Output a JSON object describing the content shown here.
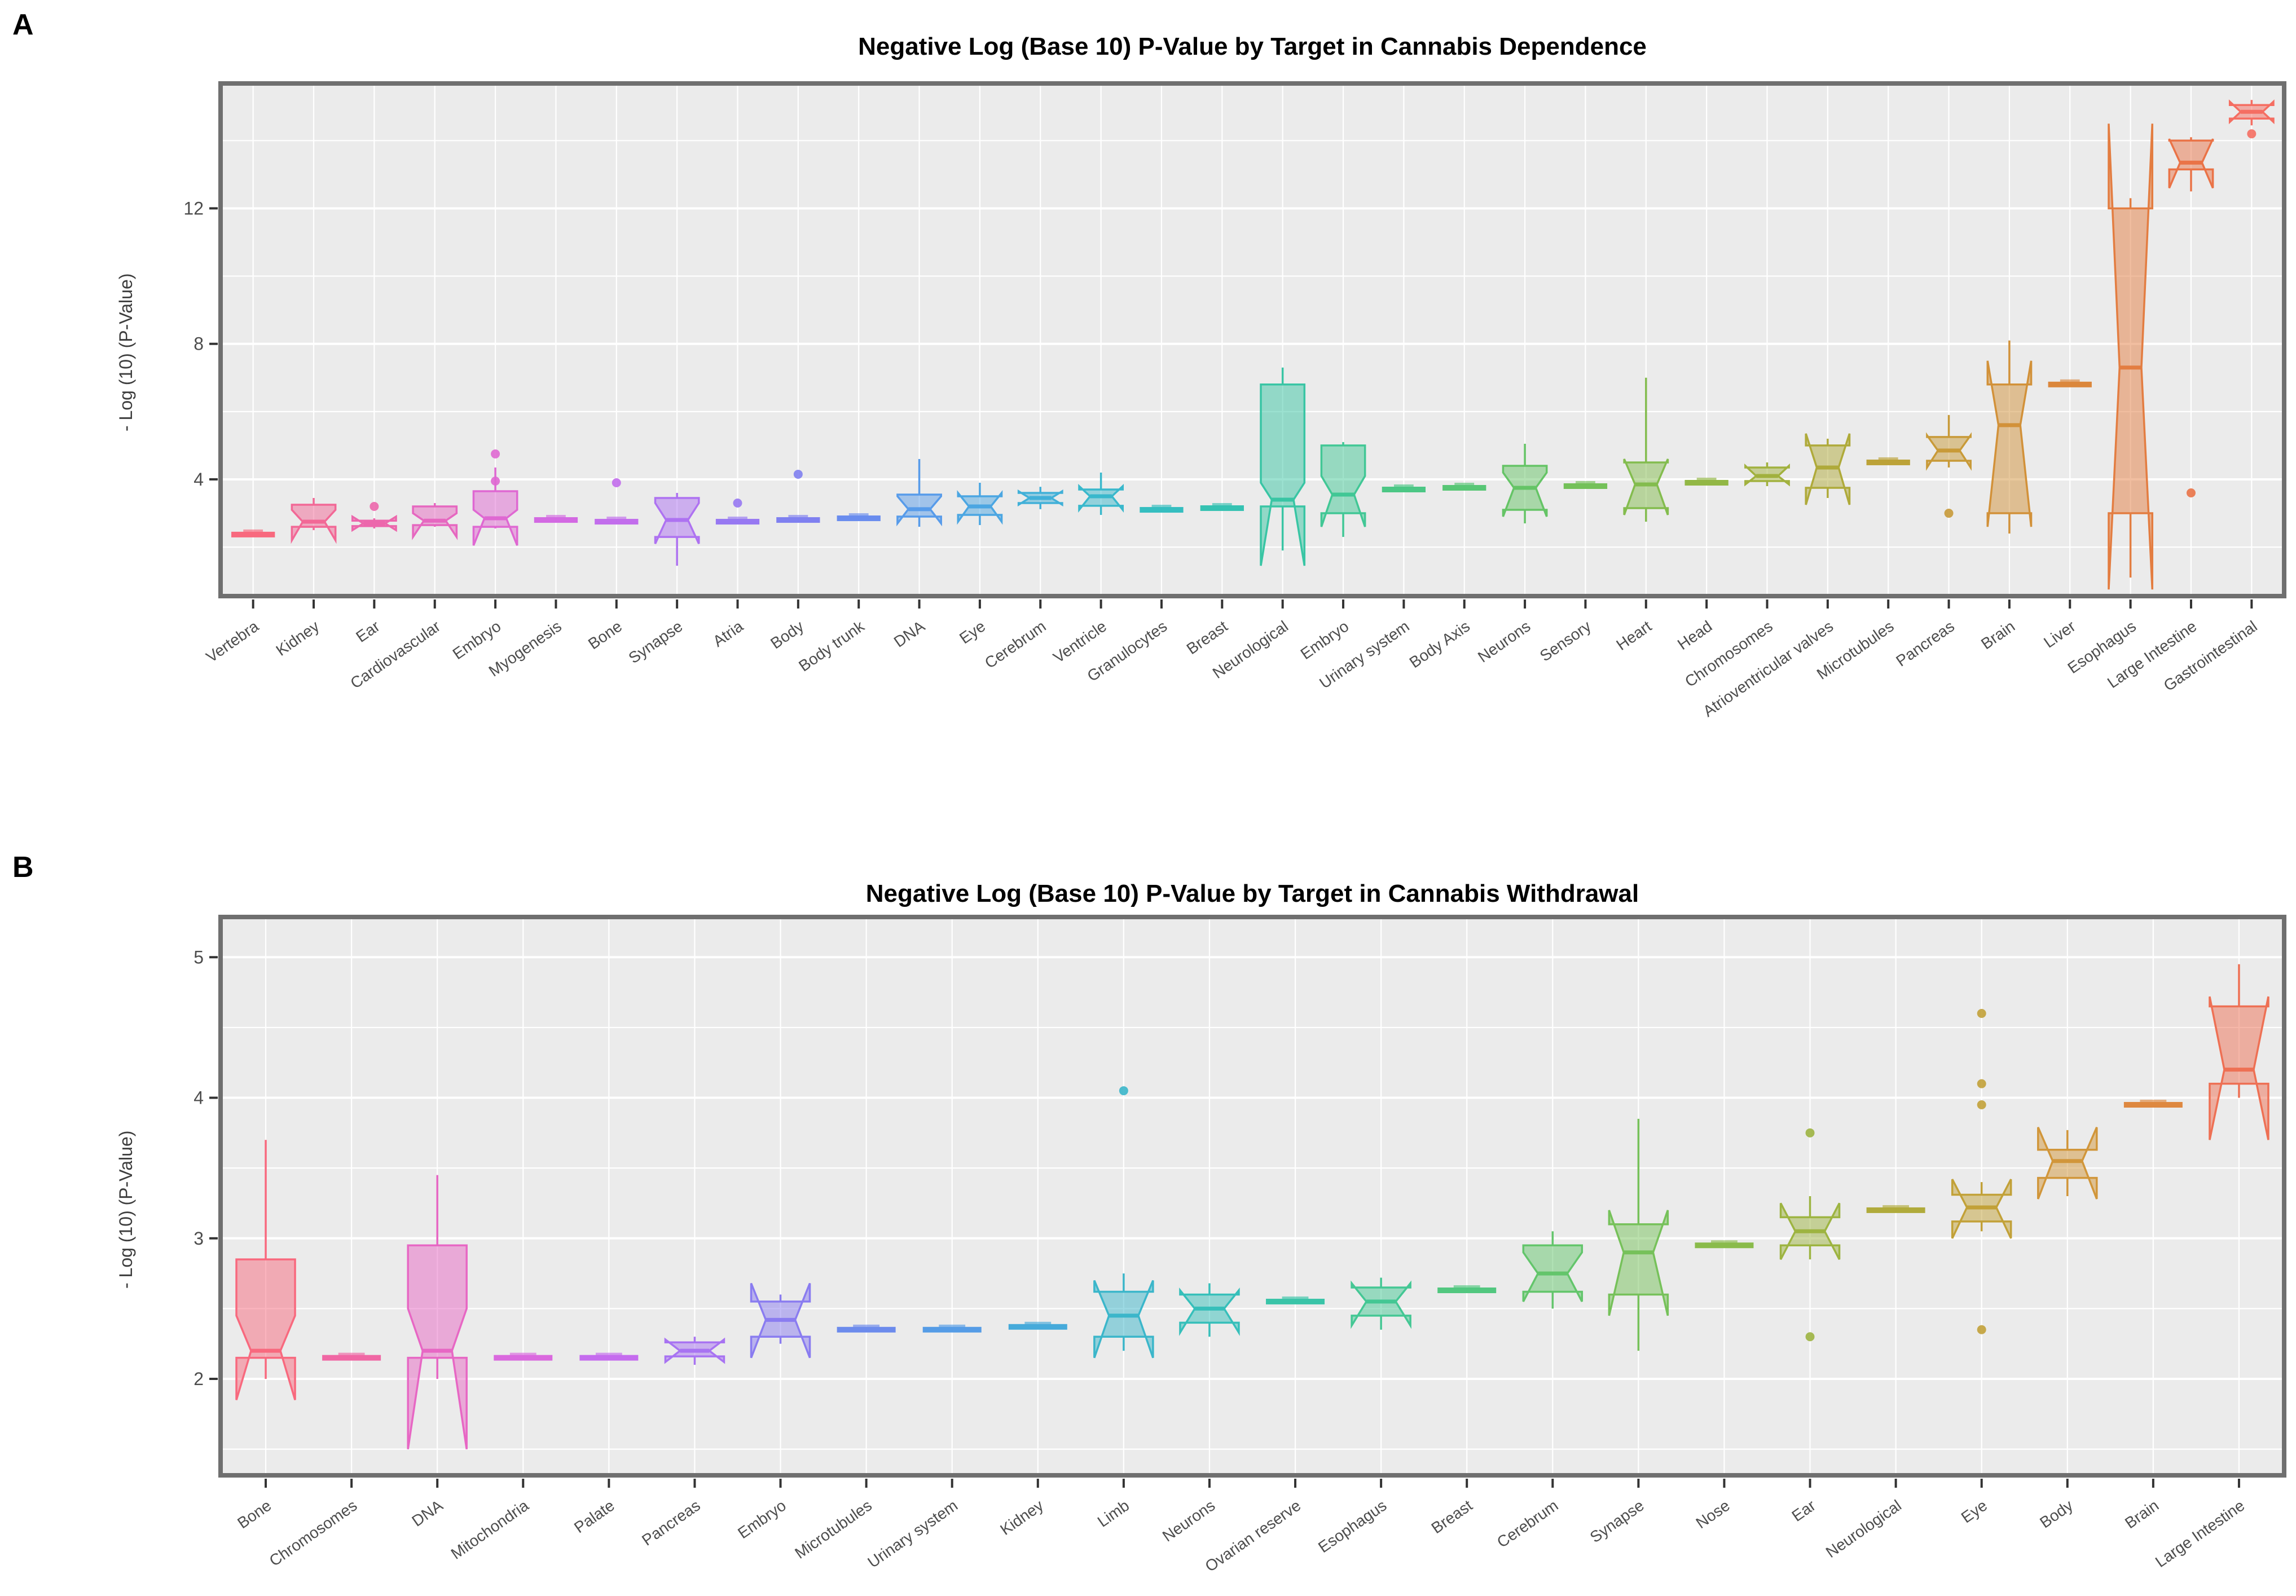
{
  "page": {
    "background": "#ffffff",
    "plot_background": "#ebebeb",
    "grid_color": "#ffffff",
    "border_color": "#6f6f6f",
    "text_color": "#3d3d3d"
  },
  "chart_data": [
    {
      "panel_label": "A",
      "type": "boxplot",
      "title": "Negative Log (Base 10) P-Value by Target in Cannabis Dependence",
      "ylabel": "- Log (10) (P-Value)",
      "xlabel": "",
      "ylim": [
        0.62,
        15.62
      ],
      "yticks": [
        4,
        8,
        12
      ],
      "yminor": [
        2,
        6,
        10,
        14
      ],
      "grid": true,
      "legend": "none",
      "boxes": [
        {
          "label": "Vertebra",
          "color": "#F8697E",
          "flat": 2.37
        },
        {
          "label": "Kidney",
          "color": "#F26896",
          "lo": 2.5,
          "q1": 2.6,
          "m": 2.75,
          "q3": 3.25,
          "hi": 3.45,
          "nl": 2.2,
          "nh": 3.1
        },
        {
          "label": "Ear",
          "color": "#EC67AC",
          "lo": 2.55,
          "q1": 2.62,
          "m": 2.7,
          "q3": 2.78,
          "hi": 2.85,
          "nl": 2.5,
          "nh": 2.9,
          "outliers": [
            3.2
          ]
        },
        {
          "label": "Cardiovascular",
          "color": "#E667C0",
          "lo": 2.6,
          "q1": 2.65,
          "m": 2.78,
          "q3": 3.2,
          "hi": 3.3,
          "nl": 2.3,
          "nh": 3.0
        },
        {
          "label": "Embryo",
          "color": "#DF68D2",
          "lo": 2.55,
          "q1": 2.6,
          "m": 2.85,
          "q3": 3.65,
          "hi": 4.35,
          "nl": 2.05,
          "nh": 3.1,
          "outliers": [
            4.75,
            3.95
          ]
        },
        {
          "label": "Myogenesis",
          "color": "#D369E2",
          "flat": 2.8
        },
        {
          "label": "Bone",
          "color": "#C26DEC",
          "flat": 2.75,
          "outliers": [
            3.9
          ]
        },
        {
          "label": "Synapse",
          "color": "#AE72F1",
          "lo": 1.45,
          "q1": 2.3,
          "m": 2.8,
          "q3": 3.45,
          "hi": 3.6,
          "nl": 2.1,
          "nh": 3.3
        },
        {
          "label": "Atria",
          "color": "#9778F2",
          "flat": 2.75,
          "outliers": [
            3.3
          ]
        },
        {
          "label": "Body",
          "color": "#7F80F0",
          "flat": 2.8,
          "outliers": [
            4.15
          ]
        },
        {
          "label": "Body trunk",
          "color": "#698CEE",
          "flat": 2.85
        },
        {
          "label": "DNA",
          "color": "#579BEA",
          "lo": 2.6,
          "q1": 2.9,
          "m": 3.12,
          "q3": 3.55,
          "hi": 4.6,
          "nl": 2.7,
          "nh": 3.5
        },
        {
          "label": "Eye",
          "color": "#4BA6E2",
          "lo": 2.65,
          "q1": 2.95,
          "m": 3.2,
          "q3": 3.5,
          "hi": 3.9,
          "nl": 2.75,
          "nh": 3.6
        },
        {
          "label": "Cerebrum",
          "color": "#41B0D8",
          "lo": 3.12,
          "q1": 3.3,
          "m": 3.45,
          "q3": 3.6,
          "hi": 3.78,
          "nl": 3.25,
          "nh": 3.65
        },
        {
          "label": "Ventricle",
          "color": "#39B8CC",
          "lo": 2.95,
          "q1": 3.22,
          "m": 3.5,
          "q3": 3.7,
          "hi": 4.2,
          "nl": 3.1,
          "nh": 3.8
        },
        {
          "label": "Granulocytes",
          "color": "#35BEC0",
          "flat": 3.1
        },
        {
          "label": "Breast",
          "color": "#35C2B2",
          "flat": 3.15
        },
        {
          "label": "Neurological",
          "color": "#39C5A4",
          "lo": 1.9,
          "q1": 3.2,
          "m": 3.4,
          "q3": 6.8,
          "hi": 7.3,
          "nl": 1.45,
          "nh": 3.9
        },
        {
          "label": "Embryo",
          "color": "#41C795",
          "lo": 2.3,
          "q1": 3.0,
          "m": 3.55,
          "q3": 5.0,
          "hi": 5.1,
          "nl": 2.6,
          "nh": 4.1
        },
        {
          "label": "Urinary system",
          "color": "#4CC785",
          "flat": 3.7
        },
        {
          "label": "Body Axis",
          "color": "#58C675",
          "flat": 3.75
        },
        {
          "label": "Neurons",
          "color": "#65C466",
          "lo": 2.7,
          "q1": 3.1,
          "m": 3.75,
          "q3": 4.4,
          "hi": 5.05,
          "nl": 2.9,
          "nh": 4.2
        },
        {
          "label": "Sensory",
          "color": "#74C159",
          "flat": 3.8
        },
        {
          "label": "Heart",
          "color": "#83BC4E",
          "lo": 2.75,
          "q1": 3.15,
          "m": 3.85,
          "q3": 4.5,
          "hi": 7.0,
          "nl": 2.95,
          "nh": 4.6
        },
        {
          "label": "Head",
          "color": "#92B745",
          "flat": 3.9
        },
        {
          "label": "Chromosomes",
          "color": "#A1B13E",
          "lo": 3.8,
          "q1": 3.95,
          "m": 4.1,
          "q3": 4.35,
          "hi": 4.5,
          "nl": 3.85,
          "nh": 4.4
        },
        {
          "label": "Atrioventricular valves",
          "color": "#AFAA3A",
          "lo": 3.45,
          "q1": 3.75,
          "m": 4.35,
          "q3": 5.0,
          "hi": 5.2,
          "nl": 3.25,
          "nh": 5.35
        },
        {
          "label": "Microtubules",
          "color": "#BCA238",
          "flat": 4.5
        },
        {
          "label": "Pancreas",
          "color": "#C89A38",
          "lo": 4.35,
          "q1": 4.55,
          "m": 4.85,
          "q3": 5.25,
          "hi": 5.9,
          "nl": 4.35,
          "nh": 5.3,
          "outliers": [
            3.0
          ]
        },
        {
          "label": "Brain",
          "color": "#D29139",
          "lo": 2.4,
          "q1": 3.0,
          "m": 5.6,
          "q3": 6.8,
          "hi": 8.1,
          "nl": 2.6,
          "nh": 7.5
        },
        {
          "label": "Liver",
          "color": "#DB873C",
          "flat": 6.8
        },
        {
          "label": "Esophagus",
          "color": "#E37D41",
          "lo": 1.1,
          "q1": 3.0,
          "m": 7.3,
          "q3": 12.0,
          "hi": 12.3,
          "nl": 0.75,
          "nh": 14.5
        },
        {
          "label": "Large Intestine",
          "color": "#EA7347",
          "lo": 12.5,
          "q1": 13.15,
          "m": 13.35,
          "q3": 14.0,
          "hi": 14.1,
          "nl": 12.6,
          "nh": 14.05,
          "outliers": [
            3.6
          ]
        },
        {
          "label": "Gastrointestinal",
          "color": "#F56E62",
          "lo": 14.45,
          "q1": 14.65,
          "m": 14.85,
          "q3": 15.05,
          "hi": 15.2,
          "nl": 14.55,
          "nh": 15.15,
          "outliers": [
            14.2
          ]
        }
      ]
    },
    {
      "panel_label": "B",
      "type": "boxplot",
      "title": "Negative Log (Base 10) P-Value by Target in Cannabis Withdrawal",
      "ylabel": "- Log (10) (P-Value)",
      "xlabel": "",
      "ylim": [
        1.33,
        5.27
      ],
      "yticks": [
        2,
        3,
        4,
        5
      ],
      "yminor": [
        1.5,
        2.5,
        3.5,
        4.5
      ],
      "grid": true,
      "legend": "none",
      "boxes": [
        {
          "label": "Bone",
          "color": "#F8697E",
          "lo": 2.0,
          "q1": 2.15,
          "m": 2.2,
          "q3": 2.85,
          "hi": 3.7,
          "nl": 1.85,
          "nh": 2.45
        },
        {
          "label": "Chromosomes",
          "color": "#F067A4",
          "flat": 2.15
        },
        {
          "label": "DNA",
          "color": "#E767C4",
          "lo": 2.0,
          "q1": 2.15,
          "m": 2.2,
          "q3": 2.95,
          "hi": 3.45,
          "nl": 1.5,
          "nh": 2.5
        },
        {
          "label": "Mitochondria",
          "color": "#DA69DE",
          "flat": 2.15
        },
        {
          "label": "Palate",
          "color": "#C56CEE",
          "flat": 2.15
        },
        {
          "label": "Pancreas",
          "color": "#A873F2",
          "lo": 2.1,
          "q1": 2.16,
          "m": 2.2,
          "q3": 2.26,
          "hi": 2.3,
          "nl": 2.12,
          "nh": 2.28
        },
        {
          "label": "Embryo",
          "color": "#8A7CF0",
          "lo": 2.25,
          "q1": 2.3,
          "m": 2.42,
          "q3": 2.55,
          "hi": 2.6,
          "nl": 2.15,
          "nh": 2.68
        },
        {
          "label": "Microtubules",
          "color": "#6C8BEC",
          "flat": 2.35
        },
        {
          "label": "Urinary system",
          "color": "#559CE6",
          "flat": 2.35
        },
        {
          "label": "Kidney",
          "color": "#46AADA",
          "flat": 2.37
        },
        {
          "label": "Limb",
          "color": "#3BB6CA",
          "lo": 2.2,
          "q1": 2.3,
          "m": 2.45,
          "q3": 2.62,
          "hi": 2.75,
          "nl": 2.15,
          "nh": 2.7,
          "outliers": [
            4.05
          ]
        },
        {
          "label": "Neurons",
          "color": "#36BFBA",
          "lo": 2.3,
          "q1": 2.4,
          "m": 2.5,
          "q3": 2.6,
          "hi": 2.68,
          "nl": 2.33,
          "nh": 2.63
        },
        {
          "label": "Ovarian reserve",
          "color": "#3AC4A8",
          "flat": 2.55
        },
        {
          "label": "Esophagus",
          "color": "#44C794",
          "lo": 2.35,
          "q1": 2.45,
          "m": 2.55,
          "q3": 2.65,
          "hi": 2.72,
          "nl": 2.38,
          "nh": 2.68
        },
        {
          "label": "Breast",
          "color": "#52C77F",
          "flat": 2.63
        },
        {
          "label": "Cerebrum",
          "color": "#63C56B",
          "lo": 2.5,
          "q1": 2.62,
          "m": 2.75,
          "q3": 2.95,
          "hi": 3.05,
          "nl": 2.55,
          "nh": 2.9
        },
        {
          "label": "Synapse",
          "color": "#76C15A",
          "lo": 2.2,
          "q1": 2.6,
          "m": 2.9,
          "q3": 3.1,
          "hi": 3.85,
          "nl": 2.45,
          "nh": 3.2
        },
        {
          "label": "Nose",
          "color": "#8ABB4B",
          "flat": 2.95
        },
        {
          "label": "Ear",
          "color": "#9DB441",
          "lo": 2.85,
          "q1": 2.95,
          "m": 3.05,
          "q3": 3.15,
          "hi": 3.3,
          "nl": 2.85,
          "nh": 3.25,
          "outliers": [
            3.75,
            2.3
          ]
        },
        {
          "label": "Neurological",
          "color": "#B0AB3B",
          "flat": 3.2
        },
        {
          "label": "Eye",
          "color": "#C2A138",
          "lo": 3.05,
          "q1": 3.12,
          "m": 3.22,
          "q3": 3.31,
          "hi": 3.4,
          "nl": 3.0,
          "nh": 3.42,
          "outliers": [
            4.6,
            4.1,
            3.95,
            2.35
          ]
        },
        {
          "label": "Body",
          "color": "#D1963A",
          "lo": 3.3,
          "q1": 3.43,
          "m": 3.55,
          "q3": 3.63,
          "hi": 3.77,
          "nl": 3.28,
          "nh": 3.79
        },
        {
          "label": "Brain",
          "color": "#DE8840",
          "flat": 3.95
        },
        {
          "label": "Large Intestine",
          "color": "#EE7054",
          "lo": 4.0,
          "q1": 4.1,
          "m": 4.2,
          "q3": 4.65,
          "hi": 4.95,
          "nl": 3.7,
          "nh": 4.72
        }
      ]
    }
  ]
}
